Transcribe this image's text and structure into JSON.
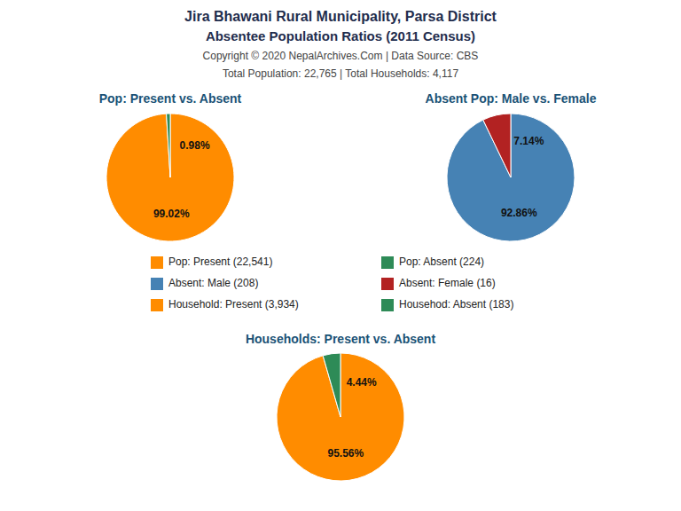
{
  "title": "Jira Bhawani Rural Municipality, Parsa District",
  "subtitle": "Absentee Population Ratios (2011 Census)",
  "annotations": [
    "Copyright © 2020 NepalArchives.Com | Data Source: CBS",
    "Total Population: 22,765 | Total Households: 4,117"
  ],
  "chart_data": [
    {
      "type": "pie",
      "title": "Pop: Present vs. Absent",
      "categories": [
        "Pop: Present (22,541)",
        "Pop: Absent (224)"
      ],
      "values": [
        99.02,
        0.98
      ],
      "value_labels": [
        "99.02%",
        "0.98%"
      ],
      "colors": [
        "#FF8C00",
        "#2E8B57"
      ],
      "data_labels": true,
      "legend": "bottom"
    },
    {
      "type": "pie",
      "title": "Absent Pop: Male vs. Female",
      "categories": [
        "Absent: Male (208)",
        "Absent: Female (16)"
      ],
      "values": [
        92.86,
        7.14
      ],
      "value_labels": [
        "92.86%",
        "7.14%"
      ],
      "colors": [
        "#4682B4",
        "#B22222"
      ],
      "data_labels": true,
      "legend": "bottom"
    },
    {
      "type": "pie",
      "title": "Households: Present vs. Absent",
      "categories": [
        "Household: Present (3,934)",
        "Househod: Absent (183)"
      ],
      "values": [
        95.56,
        4.44
      ],
      "value_labels": [
        "95.56%",
        "4.44%"
      ],
      "colors": [
        "#FF8C00",
        "#2E8B57"
      ],
      "data_labels": true,
      "legend": "bottom"
    }
  ]
}
